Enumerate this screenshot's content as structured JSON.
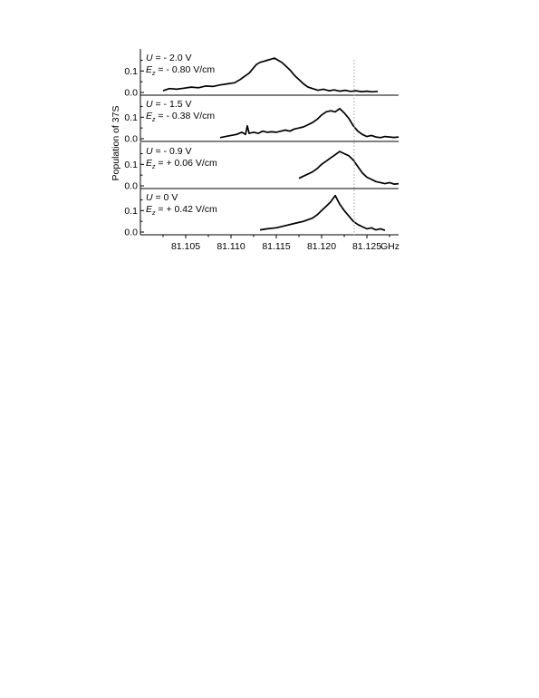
{
  "chart_data": {
    "type": "line",
    "ylabel": "Population of 37S",
    "x_unit": "GHz",
    "x_ticks": [
      "81.105",
      "81.110",
      "81.115",
      "81.120",
      "81.125"
    ],
    "x_tick_values": [
      81.105,
      81.11,
      81.115,
      81.12,
      81.125
    ],
    "xlim": [
      81.1,
      81.1285
    ],
    "reference_line_x": 81.1236,
    "reference_line_style": "dotted",
    "panels": [
      {
        "u_label": "U = - 2.0 V",
        "e_label": "E_z = - 0.80 V/cm",
        "u_var": "U",
        "u_value": " = - 2.0 V",
        "e_var": "E",
        "e_sub": "z",
        "e_value": " = - 0.80 V/cm",
        "ylim": [
          0.0,
          0.19
        ],
        "y_ticks": [
          "0.1",
          "0.0"
        ],
        "y_tick_values": [
          0.1,
          0.0
        ],
        "x": [
          81.1025,
          81.1032,
          81.104,
          81.1048,
          81.1056,
          81.1064,
          81.1072,
          81.108,
          81.1088,
          81.1096,
          81.1104,
          81.111,
          81.1115,
          81.112,
          81.1124,
          81.1128,
          81.1132,
          81.1136,
          81.114,
          81.1144,
          81.1148,
          81.1152,
          81.1156,
          81.116,
          81.1165,
          81.117,
          81.1175,
          81.118,
          81.1185,
          81.119,
          81.1196,
          81.1202,
          81.1208,
          81.1214,
          81.122,
          81.1226,
          81.1232,
          81.1238,
          81.1244,
          81.125,
          81.1256,
          81.1262
        ],
        "y": [
          0.008,
          0.018,
          0.015,
          0.02,
          0.025,
          0.022,
          0.03,
          0.028,
          0.035,
          0.04,
          0.045,
          0.06,
          0.075,
          0.09,
          0.11,
          0.13,
          0.14,
          0.145,
          0.15,
          0.155,
          0.16,
          0.15,
          0.14,
          0.125,
          0.105,
          0.08,
          0.06,
          0.04,
          0.025,
          0.018,
          0.01,
          0.015,
          0.008,
          0.012,
          0.006,
          0.01,
          0.005,
          0.008,
          0.004,
          0.006,
          0.003,
          0.005
        ]
      },
      {
        "u_label": "U = - 1.5 V",
        "e_label": "E_z = - 0.38 V/cm",
        "u_var": "U",
        "u_value": " = - 1.5 V",
        "e_var": "E",
        "e_sub": "z",
        "e_value": " = - 0.38 V/cm",
        "ylim": [
          0.0,
          0.19
        ],
        "y_ticks": [
          "0.1",
          "0.0"
        ],
        "y_tick_values": [
          0.1,
          0.0
        ],
        "x": [
          81.1088,
          81.1094,
          81.11,
          81.1106,
          81.1112,
          81.1116,
          81.1118,
          81.112,
          81.1125,
          81.113,
          81.1135,
          81.114,
          81.1145,
          81.115,
          81.1155,
          81.116,
          81.1165,
          81.117,
          81.1175,
          81.118,
          81.1185,
          81.119,
          81.1195,
          81.12,
          81.1205,
          81.121,
          81.1215,
          81.122,
          81.1225,
          81.123,
          81.1235,
          81.124,
          81.1245,
          81.125,
          81.1255,
          81.126,
          81.1265,
          81.127,
          81.1275,
          81.128,
          81.1285
        ],
        "y": [
          0.005,
          0.01,
          0.015,
          0.02,
          0.03,
          0.02,
          0.06,
          0.025,
          0.03,
          0.025,
          0.035,
          0.03,
          0.032,
          0.03,
          0.035,
          0.04,
          0.035,
          0.045,
          0.05,
          0.055,
          0.065,
          0.075,
          0.09,
          0.11,
          0.125,
          0.13,
          0.125,
          0.14,
          0.12,
          0.095,
          0.06,
          0.035,
          0.02,
          0.01,
          0.015,
          0.008,
          0.005,
          0.01,
          0.008,
          0.006,
          0.008
        ]
      },
      {
        "u_label": "U = - 0.9 V",
        "e_label": "E_z = + 0.06 V/cm",
        "u_var": "U",
        "u_value": " = - 0.9 V",
        "e_var": "E",
        "e_sub": "z",
        "e_value": " = + 0.06 V/cm",
        "ylim": [
          0.0,
          0.19
        ],
        "y_ticks": [
          "0.1",
          "0.0"
        ],
        "y_tick_values": [
          0.1,
          0.0
        ],
        "x": [
          81.1175,
          81.118,
          81.1185,
          81.119,
          81.1195,
          81.12,
          81.1205,
          81.121,
          81.1215,
          81.122,
          81.1225,
          81.123,
          81.1235,
          81.124,
          81.1245,
          81.125,
          81.1255,
          81.126,
          81.1265,
          81.127,
          81.1275,
          81.128,
          81.1285
        ],
        "y": [
          0.035,
          0.045,
          0.055,
          0.065,
          0.08,
          0.1,
          0.115,
          0.13,
          0.145,
          0.16,
          0.15,
          0.14,
          0.12,
          0.09,
          0.06,
          0.04,
          0.03,
          0.02,
          0.015,
          0.01,
          0.015,
          0.008,
          0.01
        ]
      },
      {
        "u_label": "U = 0 V",
        "e_label": "E_z = + 0.42 V/cm",
        "u_var": "U",
        "u_value": " = 0 V",
        "e_var": "E",
        "e_sub": "z",
        "e_value": " = + 0.42 V/cm",
        "ylim": [
          0.0,
          0.19
        ],
        "y_ticks": [
          "0.1",
          "0.0"
        ],
        "y_tick_values": [
          0.1,
          0.0
        ],
        "x": [
          81.1132,
          81.114,
          81.115,
          81.116,
          81.117,
          81.118,
          81.119,
          81.1195,
          81.12,
          81.1205,
          81.121,
          81.1215,
          81.122,
          81.1225,
          81.123,
          81.1235,
          81.124,
          81.1245,
          81.125,
          81.1255,
          81.126,
          81.1265,
          81.127
        ],
        "y": [
          0.01,
          0.015,
          0.02,
          0.03,
          0.04,
          0.05,
          0.065,
          0.08,
          0.1,
          0.12,
          0.14,
          0.17,
          0.13,
          0.1,
          0.075,
          0.05,
          0.035,
          0.025,
          0.015,
          0.02,
          0.01,
          0.015,
          0.008
        ]
      }
    ]
  }
}
